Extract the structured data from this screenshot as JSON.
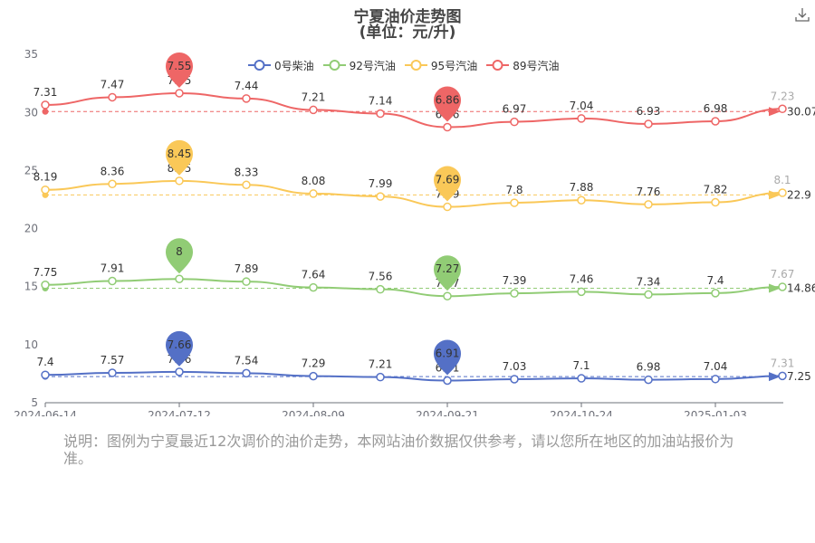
{
  "title": "宁夏油价走势图",
  "subtitle": "(单位：元/升)",
  "download_icon": "download-icon",
  "note": "说明：图例为宁夏最近12次调价的油价走势，本网站油价数据仅供参考，请以您所在地区的加油站报价为准。",
  "chart_data": {
    "type": "line",
    "xlabel": "",
    "ylabel": "",
    "ylim": [
      5,
      35
    ],
    "yticks": [
      "5",
      "10",
      "15",
      "20",
      "25",
      "30",
      "35"
    ],
    "xticks": [
      "2024-06-14",
      "2024-07-12",
      "2024-08-09",
      "2024-09-21",
      "2024-10-24",
      "2025-01-03"
    ],
    "legend_position": "top-center",
    "grid": false,
    "series": [
      {
        "name": "0号柴油",
        "color": "#5470c6",
        "values": [
          7.4,
          7.57,
          7.66,
          7.54,
          7.29,
          7.21,
          6.91,
          7.03,
          7.1,
          6.98,
          7.04,
          7.31
        ],
        "labels": [
          "7.4",
          "7.57",
          "7.66",
          "7.54",
          "7.29",
          "7.21",
          "6.91",
          "7.03",
          "7.1",
          "6.98",
          "7.04",
          "7.31"
        ],
        "max_pin": "7.66",
        "min_pin": "6.91",
        "avg_label": "7.25"
      },
      {
        "name": "92号汽油",
        "color": "#91cc75",
        "values": [
          7.75,
          7.91,
          8.0,
          7.89,
          7.64,
          7.56,
          7.27,
          7.39,
          7.46,
          7.34,
          7.4,
          7.67
        ],
        "labels": [
          "7.75",
          "7.91",
          "8",
          "7.89",
          "7.64",
          "7.56",
          "7.27",
          "7.39",
          "7.46",
          "7.34",
          "7.4",
          "7.67"
        ],
        "max_pin": "8",
        "min_pin": "7.27",
        "avg_label": "14.86"
      },
      {
        "name": "95号汽油",
        "color": "#fac858",
        "values": [
          8.19,
          8.36,
          8.45,
          8.33,
          8.08,
          7.99,
          7.69,
          7.8,
          7.88,
          7.76,
          7.82,
          8.1
        ],
        "labels": [
          "8.19",
          "8.36",
          "8.45",
          "8.33",
          "8.08",
          "7.99",
          "7.69",
          "7.8",
          "7.88",
          "7.76",
          "7.82",
          "8.1"
        ],
        "max_pin": "8.45",
        "min_pin": "7.69",
        "avg_label": "22.9"
      },
      {
        "name": "89号汽油",
        "color": "#ee6666",
        "values": [
          7.31,
          7.47,
          7.55,
          7.44,
          7.21,
          7.14,
          6.86,
          6.97,
          7.04,
          6.93,
          6.98,
          7.23
        ],
        "labels": [
          "7.31",
          "7.47",
          "7.55",
          "7.44",
          "7.21",
          "7.14",
          "6.86",
          "6.97",
          "7.04",
          "6.93",
          "6.98",
          "7.23"
        ],
        "max_pin": "7.55",
        "min_pin": "6.86",
        "avg_label": "30.07"
      }
    ]
  }
}
